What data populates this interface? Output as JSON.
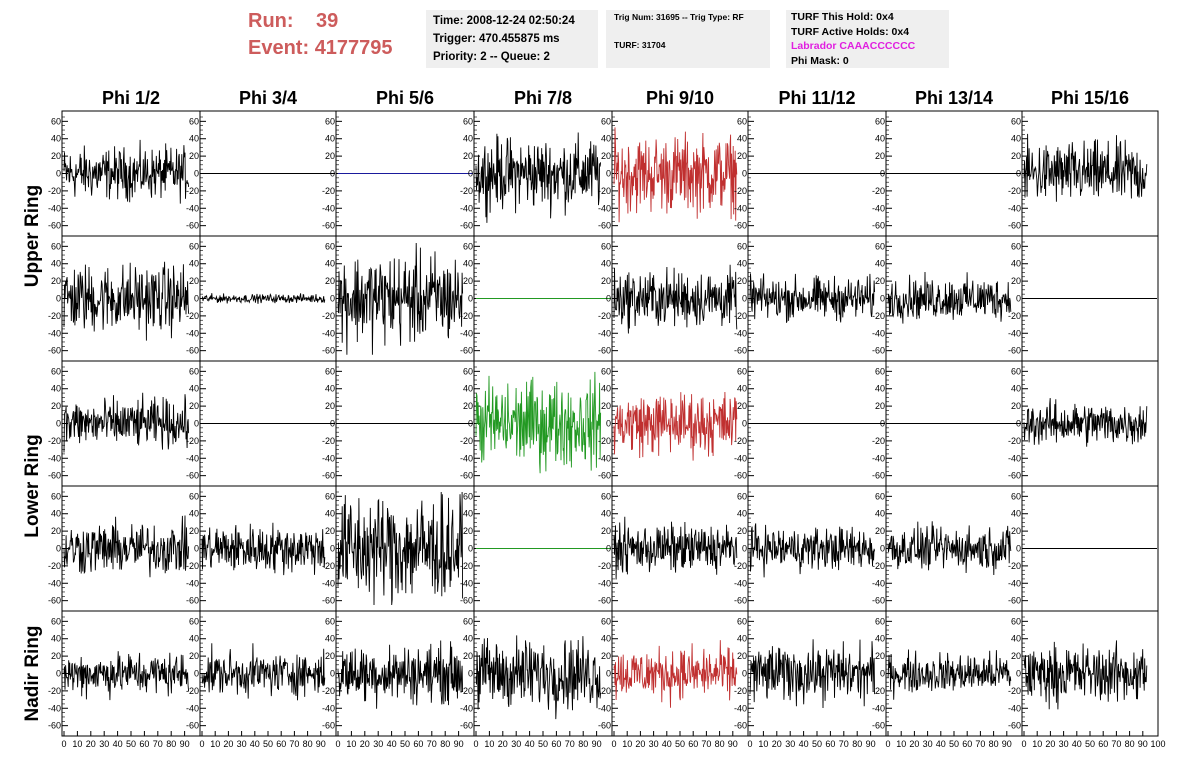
{
  "header": {
    "run_label": "Run:",
    "run_value": "39",
    "event_label": "Event:",
    "event_value": "4177795"
  },
  "info_time": {
    "time": "Time: 2008-12-24 02:50:24",
    "trigger": "Trigger: 470.455875 ms",
    "priority": "Priority: 2 -- Queue: 2"
  },
  "info_trig": {
    "trig_line": "Trig Num: 31695 -- Trig Type: RF",
    "turf_line": "TURF: 31704"
  },
  "info_turf": {
    "hold": "TURF This Hold: 0x4",
    "active": "TURF Active Holds: 0x4",
    "labrador": "Labrador CAAACCCCCC",
    "phimask": "Phi Mask: 0"
  },
  "colors": {
    "trace": "#000000",
    "blue": "#1a1a9c",
    "green": "#229922",
    "red": "#c03030",
    "header_red": "#cd5c5c",
    "magenta": "#e020e0",
    "info_bg": "#efefef"
  },
  "chart_data": {
    "type": "line",
    "columns": [
      "Phi 1/2",
      "Phi 3/4",
      "Phi 5/6",
      "Phi 7/8",
      "Phi 9/10",
      "Phi 11/12",
      "Phi 13/14",
      "Phi 15/16"
    ],
    "row_groups": [
      {
        "name": "Upper Ring",
        "rows": [
          0,
          1
        ]
      },
      {
        "name": "Lower Ring",
        "rows": [
          2,
          3
        ]
      },
      {
        "name": "Nadir Ring",
        "rows": [
          4
        ]
      }
    ],
    "ylim": [
      -65,
      65
    ],
    "yticks": [
      -60,
      -40,
      -20,
      0,
      20,
      40,
      60
    ],
    "xlim": [
      0,
      100
    ],
    "xtick_labels": [
      "0",
      "10",
      "20",
      "30",
      "40",
      "50",
      "60",
      "70",
      "80",
      "90"
    ],
    "xtick_end_label": "100",
    "x_labels_last_panel_only": [
      "100"
    ],
    "panels": [
      [
        {
          "amp": 18,
          "color": "trace"
        },
        {
          "amp": 0,
          "color": "trace"
        },
        {
          "amp": 0,
          "color": "blue"
        },
        {
          "amp": 25,
          "color": "trace"
        },
        {
          "amp": 27,
          "color": "red"
        },
        {
          "amp": 0,
          "color": "trace"
        },
        {
          "amp": 0,
          "color": "trace"
        },
        {
          "amp": 22,
          "color": "trace"
        }
      ],
      [
        {
          "amp": 24,
          "color": "trace"
        },
        {
          "amp": 3,
          "color": "trace"
        },
        {
          "amp": 32,
          "color": "trace"
        },
        {
          "amp": 0,
          "color": "green"
        },
        {
          "amp": 20,
          "color": "trace"
        },
        {
          "amp": 15,
          "color": "trace"
        },
        {
          "amp": 15,
          "color": "trace"
        },
        {
          "amp": 0,
          "color": "trace"
        }
      ],
      [
        {
          "amp": 17,
          "color": "trace"
        },
        {
          "amp": 0,
          "color": "trace"
        },
        {
          "amp": 0,
          "color": "trace"
        },
        {
          "amp": 30,
          "color": "green"
        },
        {
          "amp": 22,
          "color": "red"
        },
        {
          "amp": 0,
          "color": "trace"
        },
        {
          "amp": 0,
          "color": "trace"
        },
        {
          "amp": 15,
          "color": "trace"
        }
      ],
      [
        {
          "amp": 18,
          "color": "trace"
        },
        {
          "amp": 17,
          "color": "trace"
        },
        {
          "amp": 38,
          "color": "trace"
        },
        {
          "amp": 0,
          "color": "green"
        },
        {
          "amp": 17,
          "color": "trace"
        },
        {
          "amp": 15,
          "color": "trace"
        },
        {
          "amp": 15,
          "color": "trace"
        },
        {
          "amp": 0,
          "color": "trace"
        }
      ],
      [
        {
          "amp": 15,
          "color": "trace"
        },
        {
          "amp": 15,
          "color": "trace"
        },
        {
          "amp": 20,
          "color": "trace"
        },
        {
          "amp": 25,
          "color": "trace"
        },
        {
          "amp": 18,
          "color": "red"
        },
        {
          "amp": 20,
          "color": "trace"
        },
        {
          "amp": 14,
          "color": "trace"
        },
        {
          "amp": 20,
          "color": "trace"
        }
      ]
    ]
  }
}
